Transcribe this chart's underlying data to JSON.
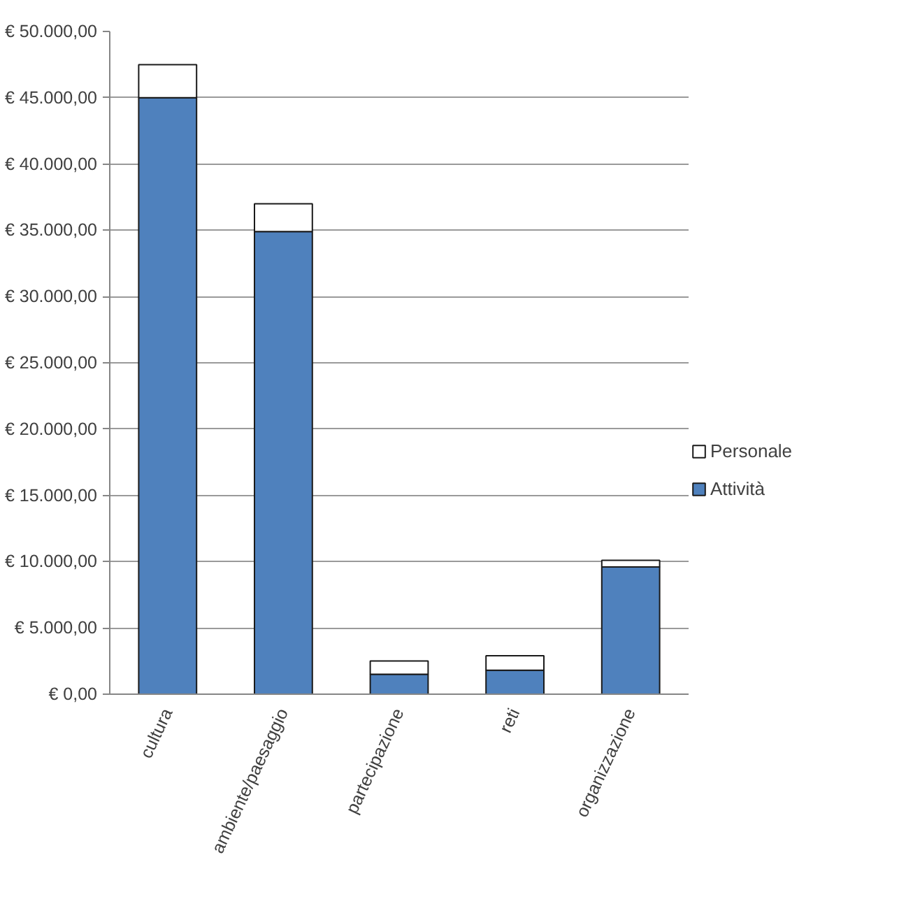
{
  "chart_data": {
    "type": "bar",
    "stacked": true,
    "categories": [
      "cultura",
      "ambiente/paesaggio",
      "partecipazione",
      "reti",
      "organizzazione"
    ],
    "series": [
      {
        "name": "Attività",
        "color": "#4f81bd",
        "values": [
          45000,
          34900,
          1500,
          1800,
          9600
        ]
      },
      {
        "name": "Personale",
        "color": "#ffffff",
        "values": [
          2500,
          2100,
          1000,
          1100,
          500
        ]
      }
    ],
    "ylim": [
      0,
      50000
    ],
    "yticks": [
      {
        "value": 0,
        "label": "€ 0,00"
      },
      {
        "value": 5000,
        "label": "€ 5.000,00"
      },
      {
        "value": 10000,
        "label": "€ 10.000,00"
      },
      {
        "value": 15000,
        "label": "€ 15.000,00"
      },
      {
        "value": 20000,
        "label": "€ 20.000,00"
      },
      {
        "value": 25000,
        "label": "€ 25.000,00"
      },
      {
        "value": 30000,
        "label": "€ 30.000,00"
      },
      {
        "value": 35000,
        "label": "€ 35.000,00"
      },
      {
        "value": 40000,
        "label": "€ 40.000,00"
      },
      {
        "value": 45000,
        "label": "€ 45.000,00"
      },
      {
        "value": 50000,
        "label": "€ 50.000,00"
      }
    ],
    "grid": "y",
    "legend": "right"
  }
}
